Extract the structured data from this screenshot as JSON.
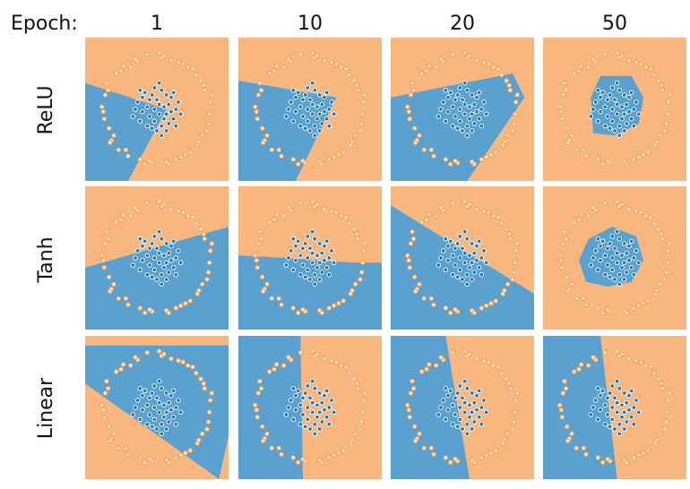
{
  "header_label": "Epoch:",
  "colors": {
    "class_outer": "#f9b67f",
    "class_inner": "#5aa1d0",
    "point_outer_fill": "#fde3c4",
    "point_inner_fill": "#1f77b4"
  },
  "chart_data": {
    "type": "scatter",
    "title": "",
    "columns": [
      "1",
      "10",
      "20",
      "50"
    ],
    "rows": [
      "ReLU",
      "Tanh",
      "Linear"
    ],
    "axes": {
      "xlim": [
        -1.5,
        1.5
      ],
      "ylim": [
        -1.5,
        1.5
      ],
      "grid": false,
      "ticks": "none"
    },
    "series": [],
    "panels": [
      [
        {
          "region": {
            "kind": "polygon",
            "points": [
              [
                -1.5,
                0.55
              ],
              [
                0.2,
                0.0
              ],
              [
                -0.6,
                -1.5
              ],
              [
                -1.5,
                -1.5
              ]
            ]
          }
        },
        {
          "region": {
            "kind": "polygon",
            "points": [
              [
                -1.5,
                0.6
              ],
              [
                0.55,
                0.25
              ],
              [
                -0.3,
                -1.5
              ],
              [
                -1.5,
                -1.5
              ]
            ]
          }
        },
        {
          "region": {
            "kind": "polygon",
            "points": [
              [
                -1.5,
                0.25
              ],
              [
                1.05,
                0.75
              ],
              [
                1.3,
                0.25
              ],
              [
                0.1,
                -1.5
              ],
              [
                -1.5,
                -1.5
              ]
            ]
          }
        },
        {
          "region": {
            "kind": "polygon",
            "points": [
              [
                -0.3,
                0.7
              ],
              [
                0.35,
                0.7
              ],
              [
                0.6,
                0.25
              ],
              [
                0.5,
                -0.3
              ],
              [
                0.0,
                -0.55
              ],
              [
                -0.45,
                -0.5
              ],
              [
                -0.5,
                0.25
              ]
            ]
          }
        }
      ],
      [
        {
          "region": {
            "kind": "polygon",
            "points": [
              [
                -1.5,
                -0.2
              ],
              [
                1.5,
                0.65
              ],
              [
                1.5,
                -1.5
              ],
              [
                -1.5,
                -1.5
              ]
            ]
          }
        },
        {
          "region": {
            "kind": "polygon",
            "points": [
              [
                -1.5,
                0.05
              ],
              [
                -0.5,
                0.0
              ],
              [
                0.2,
                -0.05
              ],
              [
                0.9,
                -0.1
              ],
              [
                1.5,
                -0.1
              ],
              [
                1.5,
                -1.5
              ],
              [
                -1.5,
                -1.5
              ]
            ]
          }
        },
        {
          "region": {
            "kind": "polygon",
            "points": [
              [
                -1.5,
                1.1
              ],
              [
                1.5,
                -0.75
              ],
              [
                1.5,
                -1.5
              ],
              [
                -1.5,
                -1.5
              ]
            ]
          }
        },
        {
          "region": {
            "kind": "polygon",
            "points": [
              [
                -0.05,
                0.65
              ],
              [
                0.45,
                0.45
              ],
              [
                0.6,
                -0.05
              ],
              [
                0.35,
                -0.5
              ],
              [
                -0.15,
                -0.6
              ],
              [
                -0.6,
                -0.5
              ],
              [
                -0.75,
                -0.05
              ],
              [
                -0.55,
                0.4
              ]
            ]
          }
        }
      ],
      [
        {
          "region": {
            "kind": "polygon",
            "points": [
              [
                -1.5,
                1.3
              ],
              [
                1.5,
                1.3
              ],
              [
                1.5,
                -0.6
              ],
              [
                1.3,
                -1.5
              ],
              [
                -1.5,
                0.5
              ]
            ]
          }
        },
        {
          "region": {
            "kind": "polygon",
            "points": [
              [
                -1.5,
                1.5
              ],
              [
                -0.2,
                1.5
              ],
              [
                -0.15,
                -1.5
              ],
              [
                -1.5,
                -1.5
              ]
            ]
          }
        },
        {
          "region": {
            "kind": "polygon",
            "points": [
              [
                -1.5,
                1.5
              ],
              [
                -0.35,
                1.5
              ],
              [
                0.15,
                -1.5
              ],
              [
                -1.5,
                -1.5
              ]
            ]
          }
        },
        {
          "region": {
            "kind": "polygon",
            "points": [
              [
                -1.5,
                1.5
              ],
              [
                -0.3,
                1.5
              ],
              [
                0.05,
                -1.5
              ],
              [
                -1.5,
                -1.5
              ]
            ]
          }
        }
      ]
    ],
    "classes": [
      {
        "color": "#f39c4a",
        "points": [
          [
            0.92,
            0.6
          ],
          [
            0.55,
            0.95
          ],
          [
            0.1,
            1.08
          ],
          [
            -0.4,
            1.0
          ],
          [
            -0.85,
            0.75
          ],
          [
            -1.08,
            0.3
          ],
          [
            -1.1,
            -0.2
          ],
          [
            -0.95,
            -0.65
          ],
          [
            -0.6,
            -0.98
          ],
          [
            -0.1,
            -1.12
          ],
          [
            0.4,
            -1.05
          ],
          [
            0.85,
            -0.75
          ],
          [
            1.08,
            -0.3
          ],
          [
            1.12,
            0.15
          ],
          [
            0.75,
            0.85
          ],
          [
            -0.2,
            1.15
          ],
          [
            -0.7,
            0.9
          ],
          [
            -1.15,
            0.05
          ],
          [
            -0.8,
            -0.85
          ],
          [
            0.2,
            -1.1
          ],
          [
            0.7,
            -0.9
          ],
          [
            1.0,
            0.4
          ],
          [
            0.3,
            1.02
          ],
          [
            -0.55,
            0.88
          ],
          [
            -1.0,
            -0.4
          ],
          [
            -0.35,
            -1.05
          ],
          [
            0.6,
            -0.95
          ],
          [
            1.1,
            -0.1
          ],
          [
            0.95,
            -0.55
          ],
          [
            -1.05,
            0.55
          ],
          [
            0.82,
            0.72
          ],
          [
            -0.25,
            -1.15
          ],
          [
            0.05,
            1.18
          ],
          [
            -0.9,
            -0.55
          ],
          [
            1.15,
            0.3
          ],
          [
            0.45,
            0.98
          ],
          [
            -0.65,
            -0.85
          ],
          [
            -1.12,
            -0.05
          ],
          [
            0.25,
            -1.15
          ],
          [
            0.98,
            0.5
          ],
          [
            -0.75,
            0.8
          ],
          [
            -0.45,
            1.05
          ],
          [
            0.65,
            0.88
          ],
          [
            1.05,
            -0.45
          ],
          [
            -1.02,
            0.4
          ],
          [
            -0.15,
            -1.08
          ],
          [
            0.5,
            -1.0
          ],
          [
            0.88,
            -0.68
          ],
          [
            -0.98,
            -0.7
          ],
          [
            0.15,
            1.12
          ]
        ]
      },
      {
        "color": "#2b7bbd",
        "points": [
          [
            0.05,
            0.1
          ],
          [
            -0.15,
            0.2
          ],
          [
            0.2,
            -0.1
          ],
          [
            -0.05,
            -0.25
          ],
          [
            0.3,
            0.25
          ],
          [
            -0.3,
            -0.05
          ],
          [
            0.1,
            0.4
          ],
          [
            -0.2,
            -0.35
          ],
          [
            0.4,
            0.0
          ],
          [
            0.0,
            -0.45
          ],
          [
            -0.4,
            0.15
          ],
          [
            0.25,
            -0.3
          ],
          [
            -0.1,
            0.3
          ],
          [
            0.15,
            0.05
          ],
          [
            -0.25,
            0.35
          ],
          [
            0.35,
            -0.2
          ],
          [
            -0.35,
            -0.25
          ],
          [
            0.05,
            -0.1
          ],
          [
            0.2,
            0.3
          ],
          [
            -0.05,
            0.45
          ],
          [
            0.45,
            0.15
          ],
          [
            -0.45,
            0.0
          ],
          [
            0.1,
            -0.35
          ],
          [
            -0.15,
            -0.15
          ],
          [
            0.3,
            -0.05
          ],
          [
            0.0,
            0.2
          ],
          [
            -0.2,
            0.05
          ],
          [
            0.15,
            -0.2
          ],
          [
            -0.3,
            0.25
          ],
          [
            0.35,
            0.35
          ],
          [
            0.25,
            0.1
          ],
          [
            -0.1,
            -0.4
          ],
          [
            0.5,
            -0.1
          ],
          [
            -0.5,
            -0.15
          ],
          [
            0.05,
            0.55
          ],
          [
            0.1,
            -0.55
          ],
          [
            -0.35,
            0.4
          ],
          [
            0.4,
            -0.35
          ],
          [
            -0.05,
            0.0
          ],
          [
            0.2,
            -0.45
          ]
        ]
      }
    ]
  }
}
